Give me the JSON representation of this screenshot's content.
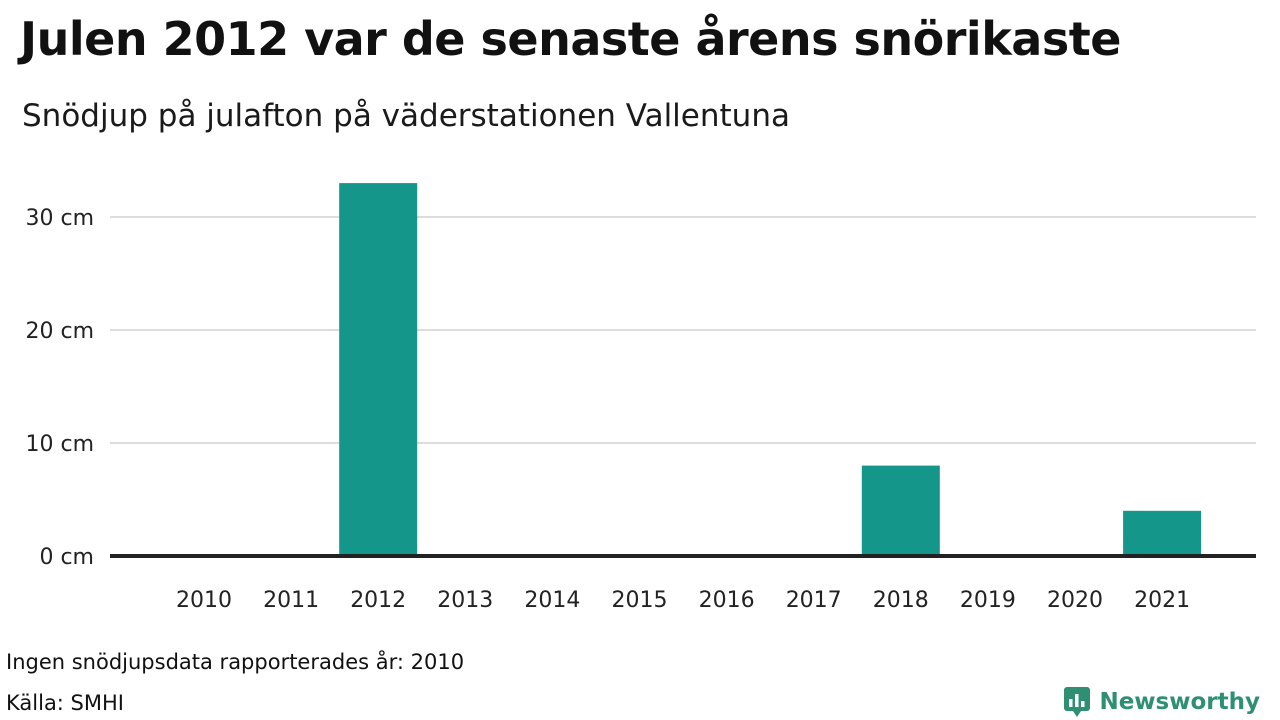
{
  "header": {
    "title": "Julen 2012 var de senaste årens snörikaste",
    "subtitle": "Snödjup på julafton på väderstationen Vallentuna"
  },
  "footer": {
    "note": "Ingen snödjupsdata rapporterades år: 2010",
    "source": "Källa: SMHI",
    "brand": "Newsworthy",
    "brand_icon": "bar-chart-speech-bubble-icon"
  },
  "colors": {
    "bar": "#15968a",
    "grid": "#dddddd",
    "baseline": "#222222",
    "brand": "#2f8f72"
  },
  "chart_data": {
    "type": "bar",
    "categories": [
      "2010",
      "2011",
      "2012",
      "2013",
      "2014",
      "2015",
      "2016",
      "2017",
      "2018",
      "2019",
      "2020",
      "2021"
    ],
    "values": [
      0,
      0,
      33,
      0,
      0,
      0,
      0,
      0,
      8,
      0,
      0,
      4
    ],
    "title": "Julen 2012 var de senaste årens snörikaste",
    "subtitle": "Snödjup på julafton på väderstationen Vallentuna",
    "y_unit": "cm",
    "yticks": [
      0,
      10,
      20,
      30
    ],
    "ytick_labels": [
      "0 cm",
      "10 cm",
      "20 cm",
      "30 cm"
    ],
    "ylim": [
      0,
      33
    ],
    "grid": true,
    "legend": "none"
  }
}
